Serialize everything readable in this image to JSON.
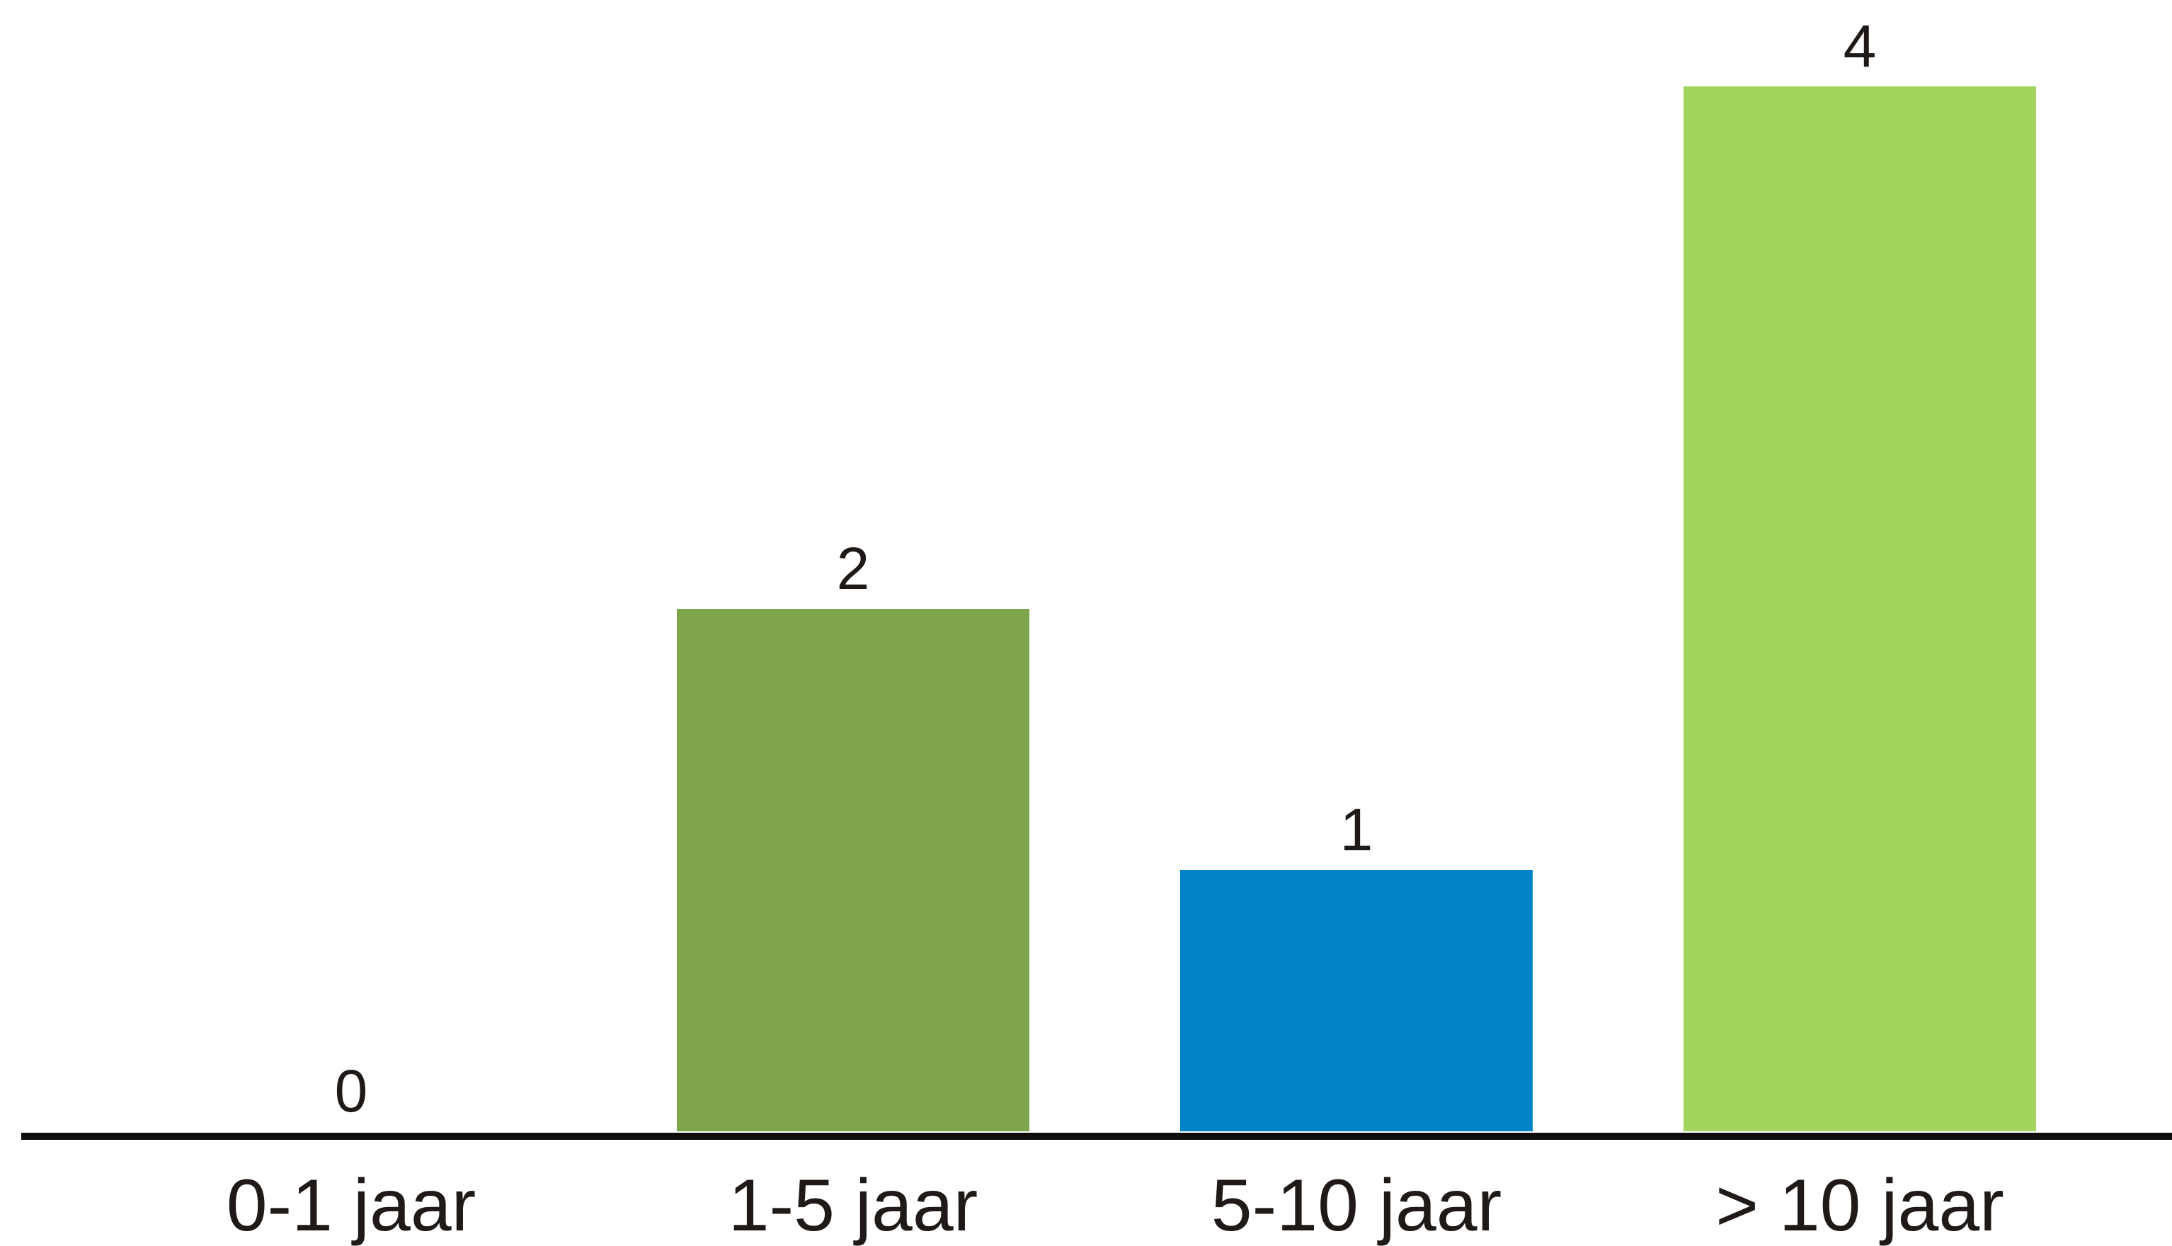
{
  "chart_data": {
    "type": "bar",
    "categories": [
      "0-1 jaar",
      "1-5 jaar",
      "5-10 jaar",
      "> 10 jaar"
    ],
    "values": [
      0,
      2,
      1,
      4
    ],
    "colors": [
      "#7ea54b",
      "#7ea54b",
      "#0282c8",
      "#a2d45e"
    ],
    "axis_color": "#0f0b0a",
    "label_color": "#1f1a17",
    "title": "",
    "xlabel": "",
    "ylabel": "",
    "ylim": [
      0,
      4
    ],
    "grid": false,
    "legend": "none",
    "data_labels": true
  }
}
